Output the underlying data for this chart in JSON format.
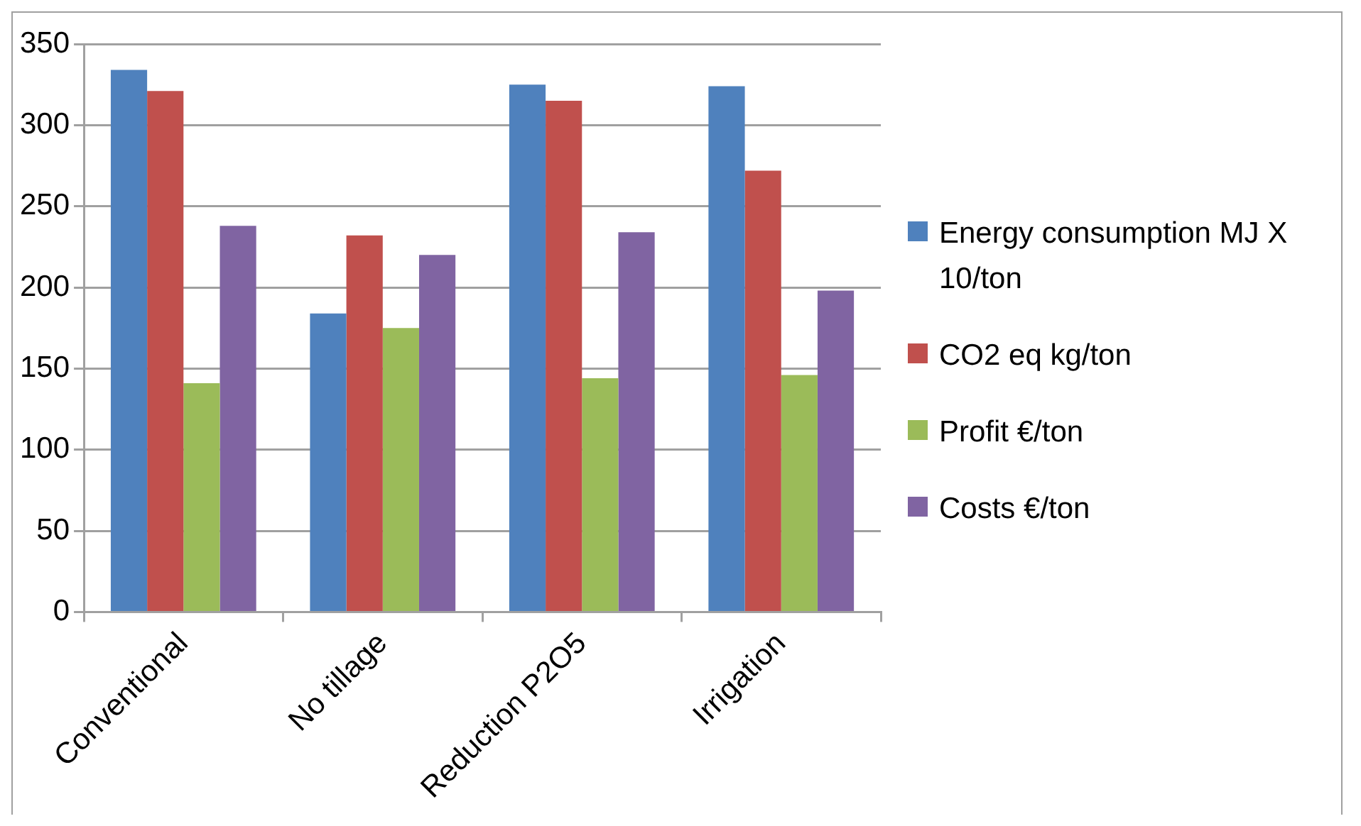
{
  "chart_data": {
    "type": "bar",
    "categories": [
      "Conventional",
      "No tillage",
      "Reduction P2O5",
      "Irrigation"
    ],
    "series": [
      {
        "name": "Energy consumption MJ X 10/ton",
        "color": "#4f81bd",
        "values": [
          334,
          184,
          325,
          324
        ]
      },
      {
        "name": "CO2 eq kg/ton",
        "color": "#c0504d",
        "values": [
          321,
          232,
          315,
          272
        ]
      },
      {
        "name": "Profit €/ton",
        "color": "#9bbb59",
        "values": [
          141,
          175,
          144,
          146
        ]
      },
      {
        "name": "Costs €/ton",
        "color": "#8064a2",
        "values": [
          238,
          220,
          234,
          198
        ]
      }
    ],
    "ylim": [
      0,
      350
    ],
    "yticks": [
      0,
      50,
      100,
      150,
      200,
      250,
      300,
      350
    ],
    "grid": "y",
    "legend": "right"
  }
}
